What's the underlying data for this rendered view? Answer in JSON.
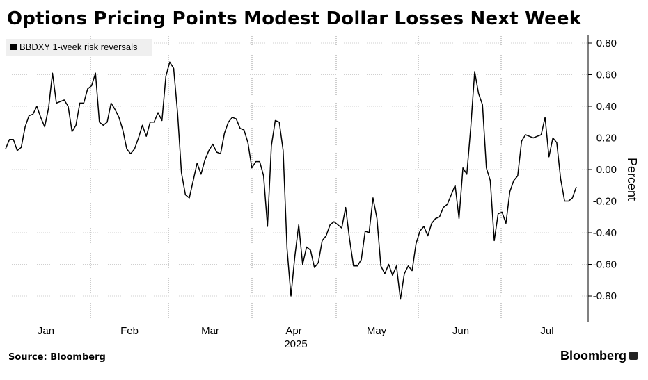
{
  "title": "Options Pricing Points Modest Dollar Losses Next Week",
  "source": "Source: Bloomberg",
  "brand": "Bloomberg",
  "chart_data": {
    "type": "line",
    "ylabel": "Percent",
    "xlabel": "2025",
    "ylim": [
      -0.96,
      0.82
    ],
    "y_ticks": [
      "0.80",
      "0.60",
      "0.40",
      "0.20",
      "0.00",
      "-0.20",
      "-0.40",
      "-0.60",
      "-0.80"
    ],
    "x_ticks": [
      "Jan",
      "Feb",
      "Mar",
      "Apr",
      "May",
      "Jun",
      "Jul"
    ],
    "x_year": "2025",
    "grid": "vertical dotted at month boundaries",
    "legend_position": "top-left",
    "line_color": "#000000",
    "series": [
      {
        "name": "BBDXY 1-week risk reversals",
        "values": [
          0.13,
          0.19,
          0.19,
          0.12,
          0.14,
          0.27,
          0.34,
          0.35,
          0.4,
          0.33,
          0.27,
          0.39,
          0.61,
          0.42,
          0.43,
          0.44,
          0.4,
          0.24,
          0.28,
          0.42,
          0.42,
          0.51,
          0.53,
          0.61,
          0.3,
          0.28,
          0.3,
          0.42,
          0.38,
          0.33,
          0.25,
          0.13,
          0.1,
          0.13,
          0.2,
          0.28,
          0.21,
          0.3,
          0.3,
          0.36,
          0.31,
          0.59,
          0.68,
          0.64,
          0.36,
          -0.02,
          -0.16,
          -0.18,
          -0.07,
          0.04,
          -0.03,
          0.06,
          0.12,
          0.16,
          0.11,
          0.1,
          0.23,
          0.3,
          0.33,
          0.32,
          0.26,
          0.25,
          0.17,
          0.01,
          0.05,
          0.05,
          -0.04,
          -0.36,
          0.15,
          0.31,
          0.3,
          0.12,
          -0.5,
          -0.8,
          -0.55,
          -0.35,
          -0.6,
          -0.49,
          -0.51,
          -0.62,
          -0.59,
          -0.45,
          -0.42,
          -0.35,
          -0.33,
          -0.35,
          -0.37,
          -0.24,
          -0.44,
          -0.61,
          -0.61,
          -0.57,
          -0.39,
          -0.4,
          -0.18,
          -0.31,
          -0.61,
          -0.66,
          -0.6,
          -0.67,
          -0.61,
          -0.82,
          -0.66,
          -0.61,
          -0.64,
          -0.47,
          -0.39,
          -0.36,
          -0.42,
          -0.34,
          -0.31,
          -0.3,
          -0.24,
          -0.22,
          -0.16,
          -0.1,
          -0.31,
          0.01,
          -0.03,
          0.27,
          0.62,
          0.48,
          0.41,
          0.01,
          -0.07,
          -0.45,
          -0.28,
          -0.27,
          -0.34,
          -0.14,
          -0.07,
          -0.04,
          0.18,
          0.22,
          0.21,
          0.2,
          0.21,
          0.22,
          0.33,
          0.08,
          0.2,
          0.17,
          -0.06,
          -0.2,
          -0.2,
          -0.18,
          -0.11
        ]
      }
    ]
  }
}
